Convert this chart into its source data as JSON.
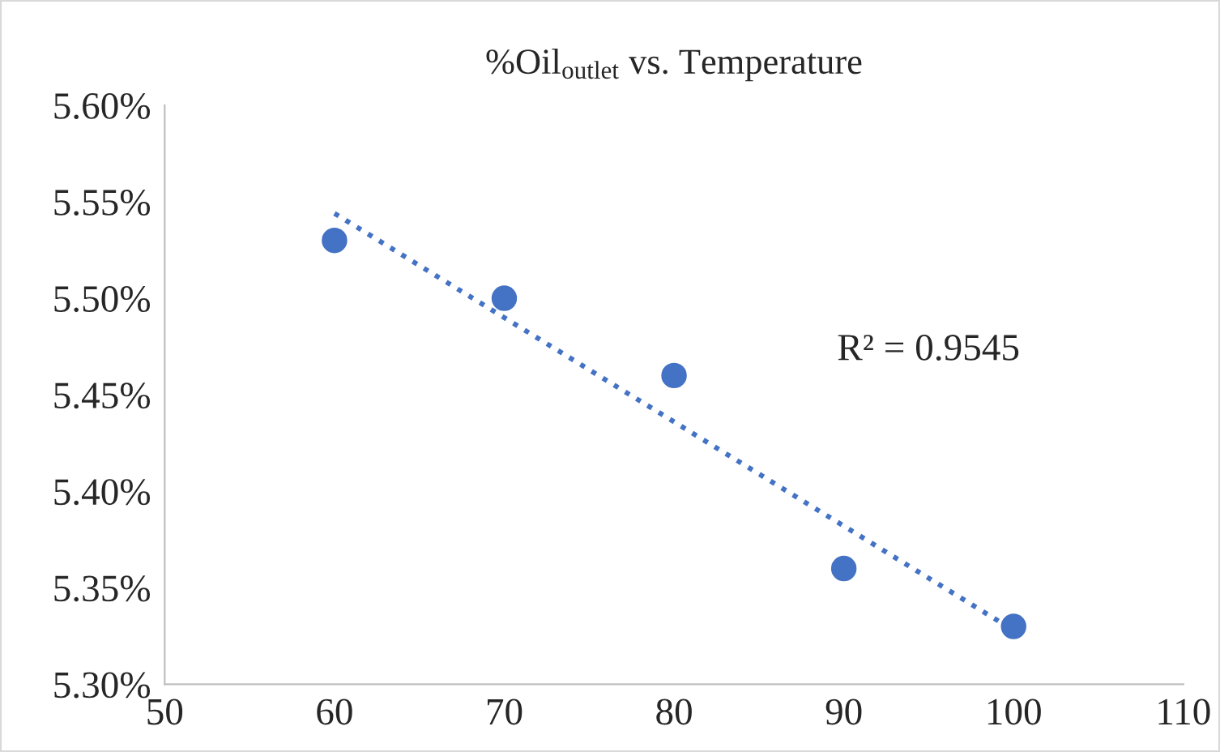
{
  "chart_data": {
    "type": "scatter",
    "title": "%Oil$_{outlet}$ vs. Temperature",
    "series": [
      {
        "color": "#4472c4",
        "marker": "circle",
        "x": [
          60,
          70,
          80,
          90,
          100
        ],
        "values": [
          5.53,
          5.5,
          5.46,
          5.36,
          5.33
        ]
      },
      {
        "type": "line",
        "color": "#4472c4",
        "marker": "none",
        "line_style": "dotted",
        "x": [
          60,
          100
        ],
        "values": [
          5.544,
          5.328
        ]
      }
    ],
    "annotations": [
      "R² = 0.9545"
    ],
    "xlim": [
      50,
      110
    ],
    "xticks": [
      50,
      60,
      70,
      80,
      90,
      100,
      110
    ],
    "ylim": [
      5.3,
      5.6
    ],
    "yticks": [
      {
        "value": 5.3,
        "label": "5.30%"
      },
      {
        "value": 5.35,
        "label": "5.35%"
      },
      {
        "value": 5.4,
        "label": "5.40%"
      },
      {
        "value": 5.45,
        "label": "5.45%"
      },
      {
        "value": 5.5,
        "label": "5.50%"
      },
      {
        "value": 5.55,
        "label": "5.55%"
      },
      {
        "value": 5.6,
        "label": "5.60%"
      }
    ],
    "grid": false,
    "legend": false
  }
}
